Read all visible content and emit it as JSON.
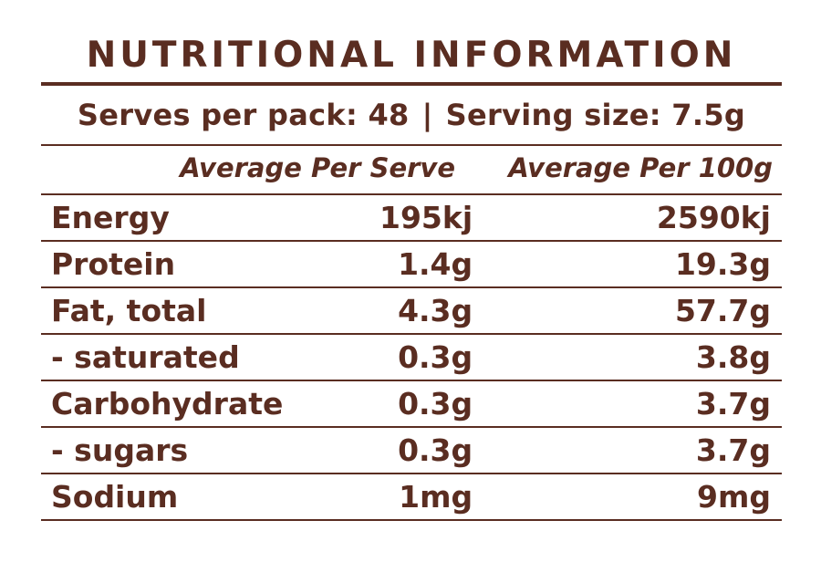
{
  "title": "NUTRITIONAL INFORMATION",
  "serves": {
    "serves_per_pack": "Serves per pack: 48",
    "separator": "|",
    "serving_size": "Serving size: 7.5g"
  },
  "columns": {
    "per_serve": "Average Per Serve",
    "per_100g": "Average Per 100g"
  },
  "rows": [
    {
      "name": "Energy",
      "per_serve": "195kj",
      "per_100g": "2590kj"
    },
    {
      "name": "Protein",
      "per_serve": "1.4g",
      "per_100g": "19.3g"
    },
    {
      "name": "Fat, total",
      "per_serve": "4.3g",
      "per_100g": "57.7g"
    },
    {
      "name": "- saturated",
      "per_serve": "0.3g",
      "per_100g": "3.8g"
    },
    {
      "name": "Carbohydrate",
      "per_serve": "0.3g",
      "per_100g": "3.7g"
    },
    {
      "name": "- sugars",
      "per_serve": "0.3g",
      "per_100g": "3.7g"
    },
    {
      "name": "Sodium",
      "per_serve": "1mg",
      "per_100g": "9mg"
    }
  ],
  "colors": {
    "text": "#5a2d21",
    "background": "#ffffff"
  }
}
